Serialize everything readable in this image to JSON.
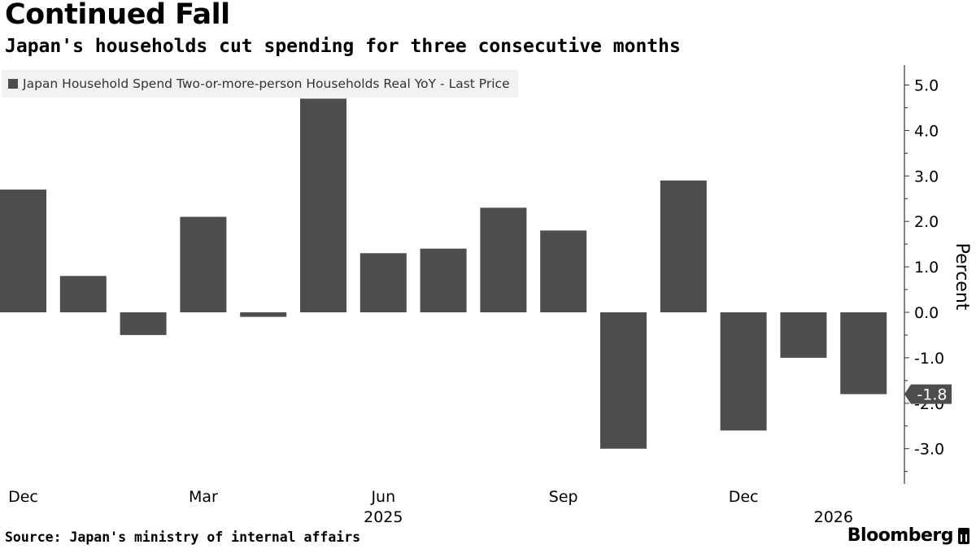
{
  "header": {
    "title": "Continued Fall",
    "subtitle": "Japan's households cut spending for three consecutive months"
  },
  "legend": {
    "label": "Japan Household Spend Two-or-more-person Households Real YoY - Last Price"
  },
  "footer": {
    "source": "Source: Japan's ministry of internal affairs",
    "brand": "Bloomberg"
  },
  "colors": {
    "bar": "#4d4d4d",
    "axis": "#333333",
    "last_price_bg": "#4d4d4d",
    "last_price_text": "#ffffff"
  },
  "chart_data": {
    "type": "bar",
    "title": "Continued Fall",
    "subtitle": "Japan's households cut spending for three consecutive months",
    "ylabel": "Percent",
    "xlabel": "",
    "ylim": [
      -3.8,
      5.5
    ],
    "yticks": [
      5.0,
      4.0,
      3.0,
      2.0,
      1.0,
      0.0,
      -1.0,
      -2.0,
      -3.0
    ],
    "ytick_labels": [
      "5.0",
      "4.0",
      "3.0",
      "2.0",
      "1.0",
      "0.0",
      "-1.0",
      "-2.0",
      "-3.0"
    ],
    "categories": [
      "Dec 2024",
      "Jan 2025",
      "Feb 2025",
      "Mar 2025",
      "Apr 2025",
      "May 2025",
      "Jun 2025",
      "Jul 2025",
      "Aug 2025",
      "Sep 2025",
      "Oct 2025",
      "Nov 2025",
      "Dec 2025",
      "Jan 2026",
      "Feb 2026"
    ],
    "series": [
      {
        "name": "Japan Household Spend Two-or-more-person Households Real YoY - Last Price",
        "values": [
          2.7,
          0.8,
          -0.5,
          2.1,
          -0.1,
          4.7,
          1.3,
          1.4,
          2.3,
          1.8,
          -3.0,
          2.9,
          -2.6,
          -1.0,
          -1.8
        ]
      }
    ],
    "x_tick_labels": [
      {
        "index": 0,
        "label": "Dec"
      },
      {
        "index": 3,
        "label": "Mar"
      },
      {
        "index": 6,
        "label": "Jun"
      },
      {
        "index": 9,
        "label": "Sep"
      },
      {
        "index": 12,
        "label": "Dec"
      }
    ],
    "year_labels": [
      {
        "index": 6,
        "label": "2025"
      },
      {
        "index": 13.5,
        "label": "2026"
      }
    ],
    "last_price": {
      "value": -1.8,
      "label": "-1.8"
    },
    "grid": false,
    "legend_position": "top-left"
  }
}
